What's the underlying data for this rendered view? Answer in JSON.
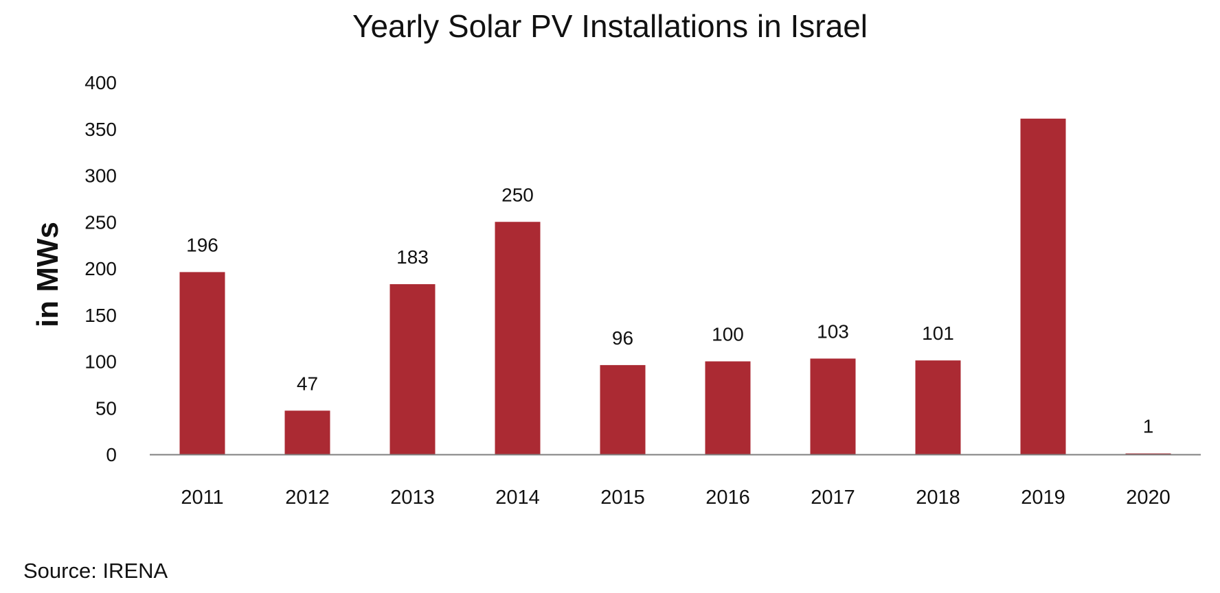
{
  "chart_data": {
    "type": "bar",
    "title": "Yearly Solar PV Installations in Israel",
    "xlabel": "",
    "ylabel": "in MWs",
    "categories": [
      "2011",
      "2012",
      "2013",
      "2014",
      "2015",
      "2016",
      "2017",
      "2018",
      "2019",
      "2020"
    ],
    "values": [
      196,
      47,
      183,
      250,
      96,
      100,
      103,
      101,
      361,
      1
    ],
    "data_labels": [
      "196",
      "47",
      "183",
      "250",
      "96",
      "100",
      "103",
      "101",
      "",
      "1"
    ],
    "ylim": [
      0,
      400
    ],
    "yticks": [
      0,
      50,
      100,
      150,
      200,
      250,
      300,
      350,
      400
    ],
    "grid": false,
    "legend": "none",
    "bar_color": "#ab2a33",
    "axis_color": "#7f7f7f"
  },
  "source": "Source: IRENA"
}
